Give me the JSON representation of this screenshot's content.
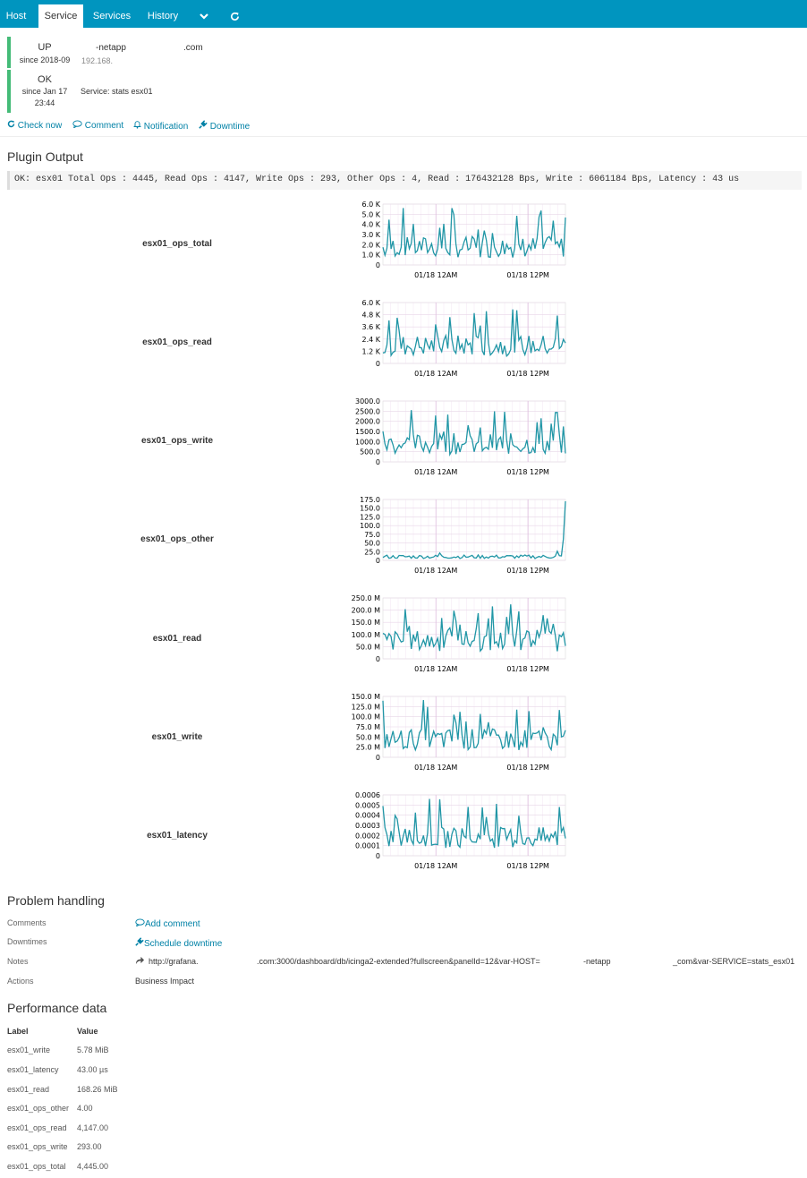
{
  "tabs": {
    "host": "Host",
    "service": "Service",
    "services": "Services",
    "history": "History"
  },
  "host": {
    "state": "UP",
    "since": "since 2018-09",
    "name": "-netapp",
    "name_suffix": ".com",
    "address": "192.168."
  },
  "service": {
    "state": "OK",
    "since_line1": "since Jan 17",
    "since_line2": "23:44",
    "label": "Service: stats esx01"
  },
  "actions": {
    "check_now": "Check now",
    "comment": "Comment",
    "notification": "Notification",
    "downtime": "Downtime"
  },
  "plugin_output": {
    "heading": "Plugin Output",
    "text": "OK: esx01 Total Ops : 4445, Read Ops : 4147, Write Ops : 293, Other Ops : 4, Read : 176432128 Bps, Write : 6061184 Bps, Latency : 43 us"
  },
  "graphs": [
    {
      "label": "esx01_ops_total",
      "yticks": [
        "6.0 K",
        "5.0 K",
        "4.0 K",
        "3.0 K",
        "2.0 K",
        "1.0 K",
        "0"
      ],
      "xticks": [
        "01/18 12AM",
        "01/18 12PM"
      ],
      "line_color": "#2196a6"
    },
    {
      "label": "esx01_ops_read",
      "yticks": [
        "6.0 K",
        "4.8 K",
        "3.6 K",
        "2.4 K",
        "1.2 K",
        "0"
      ],
      "xticks": [
        "01/18 12AM",
        "01/18 12PM"
      ],
      "line_color": "#2196a6"
    },
    {
      "label": "esx01_ops_write",
      "yticks": [
        "3000.0",
        "2500.0",
        "2000.0",
        "1500.0",
        "1000.0",
        "500.0",
        "0"
      ],
      "xticks": [
        "01/18 12AM",
        "01/18 12PM"
      ],
      "line_color": "#2196a6"
    },
    {
      "label": "esx01_ops_other",
      "yticks": [
        "175.0",
        "150.0",
        "125.0",
        "100.0",
        "75.0",
        "50.0",
        "25.0",
        "0"
      ],
      "xticks": [
        "01/18 12AM",
        "01/18 12PM"
      ],
      "line_color": "#2196a6"
    },
    {
      "label": "esx01_read",
      "yticks": [
        "250.0 M",
        "200.0 M",
        "150.0 M",
        "100.0 M",
        "50.0 M",
        "0"
      ],
      "xticks": [
        "01/18 12AM",
        "01/18 12PM"
      ],
      "line_color": "#2196a6"
    },
    {
      "label": "esx01_write",
      "yticks": [
        "150.0 M",
        "125.0 M",
        "100.0 M",
        "75.0 M",
        "50.0 M",
        "25.0 M",
        "0"
      ],
      "xticks": [
        "01/18 12AM",
        "01/18 12PM"
      ],
      "line_color": "#2196a6"
    },
    {
      "label": "esx01_latency",
      "yticks": [
        "0.0006",
        "0.0005",
        "0.0004",
        "0.0003",
        "0.0002",
        "0.0001",
        "0"
      ],
      "xticks": [
        "01/18 12AM",
        "01/18 12PM"
      ],
      "line_color": "#2196a6"
    }
  ],
  "problem_handling": {
    "heading": "Problem handling",
    "comments_label": "Comments",
    "add_comment": "Add comment",
    "downtimes_label": "Downtimes",
    "schedule_downtime": "Schedule downtime",
    "notes_label": "Notes",
    "notes_url_part1": "http://grafana.",
    "notes_url_part2": ".com:3000/dashboard/db/icinga2-extended?fullscreen&panelId=12&var-HOST=",
    "notes_url_part3": "-netapp",
    "notes_url_part4": "_com&var-SERVICE=stats_esx01",
    "actions_label": "Actions",
    "business_impact": "Business Impact"
  },
  "performance": {
    "heading": "Performance data",
    "col_label": "Label",
    "col_value": "Value",
    "rows": [
      {
        "label": "esx01_write",
        "value": "5.78 MiB"
      },
      {
        "label": "esx01_latency",
        "value": "43.00 µs"
      },
      {
        "label": "esx01_read",
        "value": "168.26 MiB"
      },
      {
        "label": "esx01_ops_other",
        "value": "4.00"
      },
      {
        "label": "esx01_ops_read",
        "value": "4,147.00"
      },
      {
        "label": "esx01_ops_write",
        "value": "293.00"
      },
      {
        "label": "esx01_ops_total",
        "value": "4,445.00"
      }
    ]
  },
  "colors": {
    "header": "#0095bf",
    "state_ok": "#44bb77",
    "link": "#0081a6"
  }
}
